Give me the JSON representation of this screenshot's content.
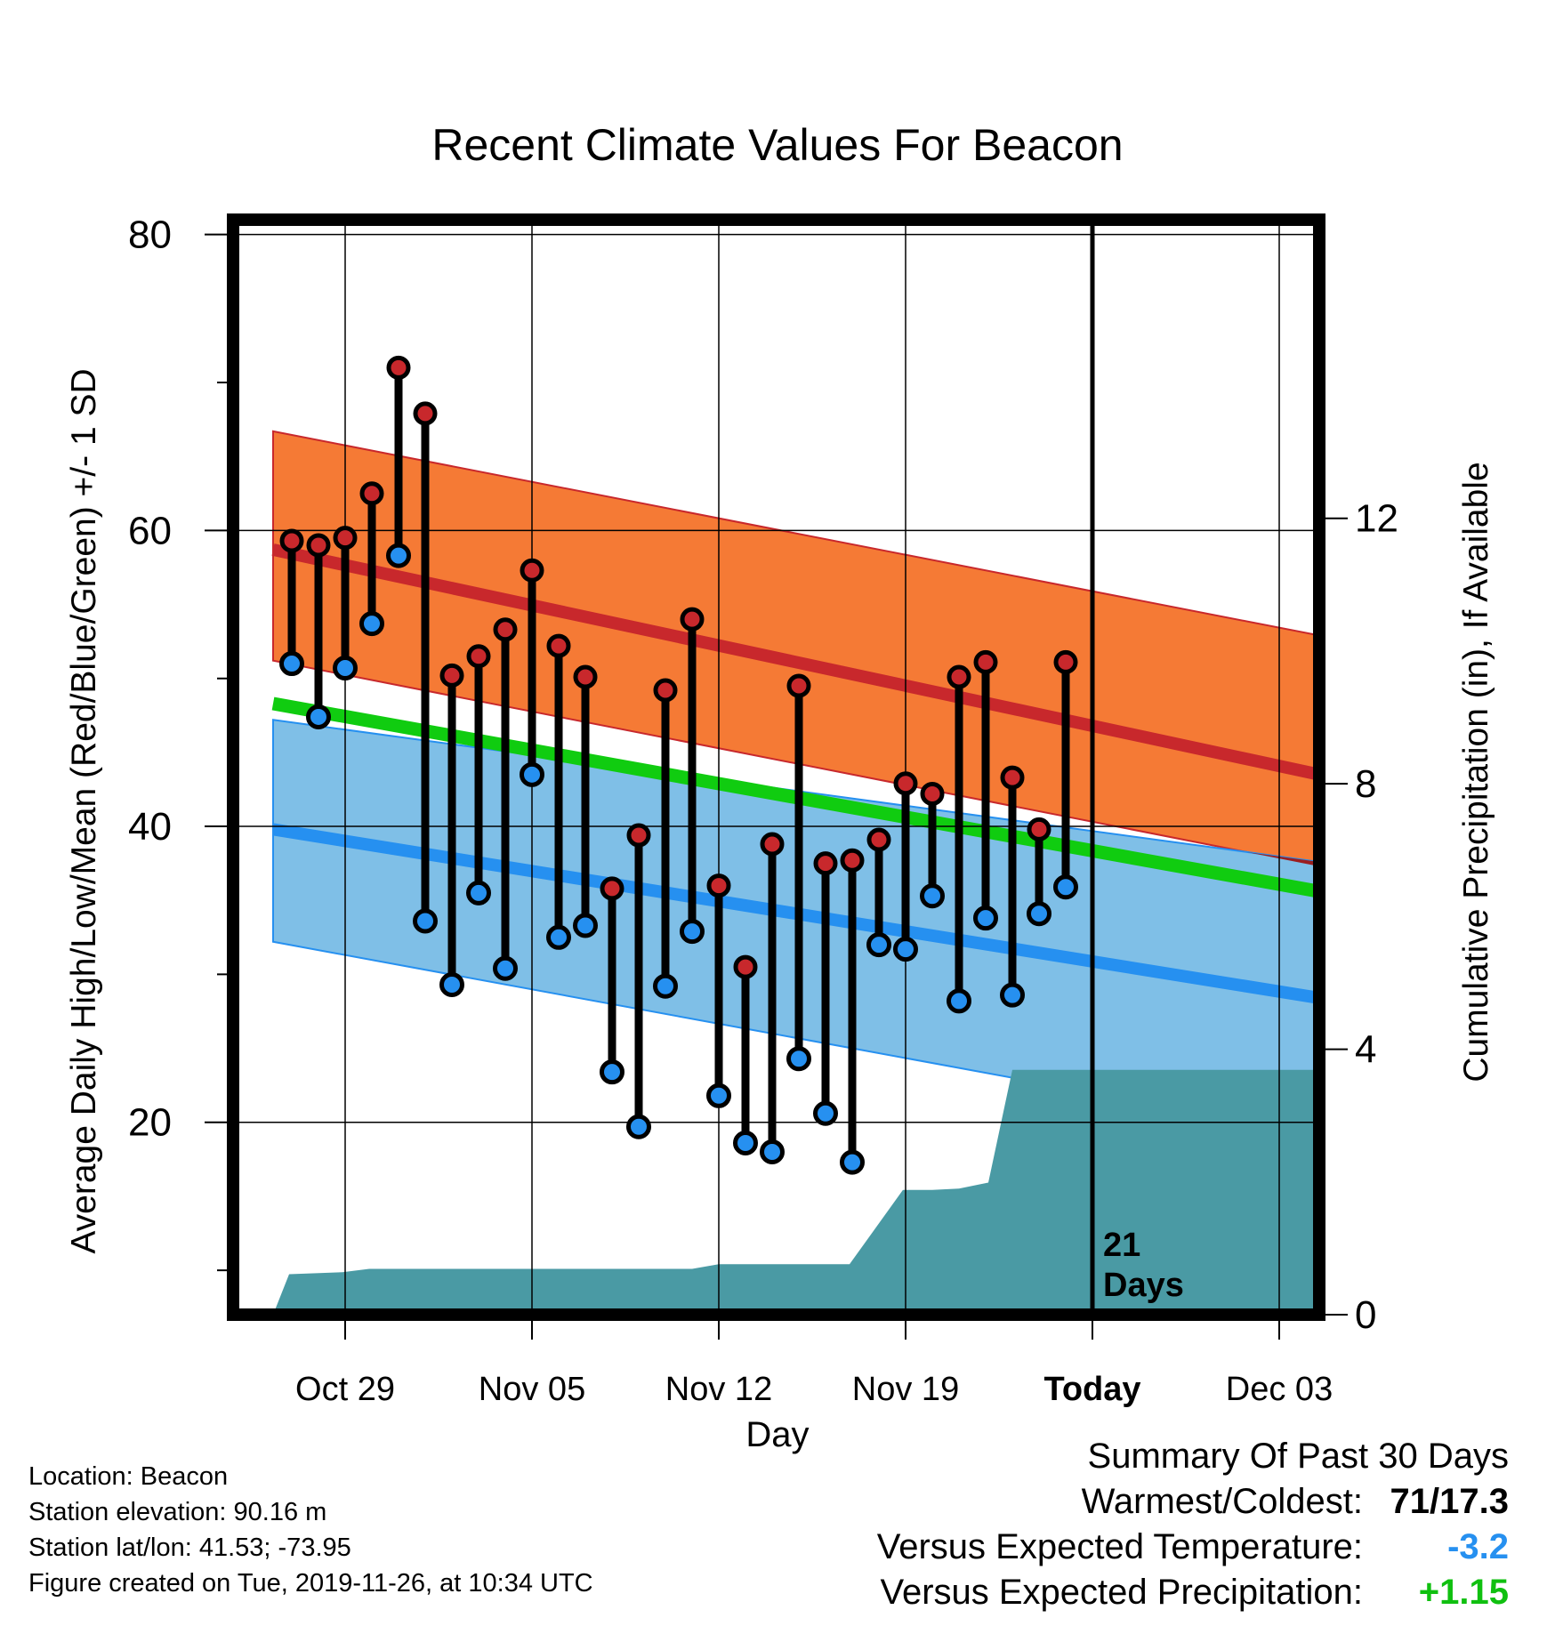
{
  "chart_data": {
    "type": "line",
    "title": "Recent Climate Values For Beacon",
    "xlabel": "Day",
    "ylabel_left": "Average Daily High/Low/Mean (Red/Blue/Green) +/- 1 SD",
    "ylabel_right": "Cumulative Precipitation (in), If Available",
    "x_domain_days": [
      -4.2,
      36.5
    ],
    "x_ticks": [
      {
        "label": "Oct 29",
        "day": 0
      },
      {
        "label": "Nov 05",
        "day": 7
      },
      {
        "label": "Nov 12",
        "day": 14
      },
      {
        "label": "Nov 19",
        "day": 21
      },
      {
        "label": "Today",
        "day": 28
      },
      {
        "label": "Dec 03",
        "day": 35
      }
    ],
    "ylim_left": [
      7,
      81
    ],
    "y_ticks_left": [
      20,
      40,
      60,
      80
    ],
    "ylim_right": [
      0,
      16.5
    ],
    "y_ticks_right": [
      0,
      4,
      8,
      12
    ],
    "today_day": 28,
    "today_annotation": [
      "21",
      "Days"
    ],
    "normals": {
      "start_day": -2.7,
      "end_day": 36.5,
      "high_sd_upper": [
        66.7,
        52.9
      ],
      "high_mean": [
        58.7,
        43.5
      ],
      "high_sd_lower": [
        51.2,
        37.3
      ],
      "mean": [
        48.3,
        35.6
      ],
      "low_sd_upper": [
        47.2,
        37.6
      ],
      "low_mean": [
        39.8,
        28.4
      ],
      "low_sd_lower": [
        32.2,
        19.2
      ]
    },
    "days": [
      -2,
      -1,
      0,
      1,
      2,
      3,
      4,
      5,
      6,
      7,
      8,
      9,
      10,
      11,
      12,
      13,
      14,
      15,
      16,
      17,
      18,
      19,
      20,
      21,
      22,
      23,
      24,
      25,
      26,
      27
    ],
    "highs": [
      59.3,
      59.0,
      59.5,
      62.5,
      71.0,
      67.9,
      50.2,
      51.5,
      53.3,
      57.3,
      52.2,
      50.1,
      35.8,
      39.4,
      49.2,
      54.0,
      36.0,
      30.5,
      38.8,
      49.5,
      37.5,
      37.7,
      39.1,
      42.9,
      42.2,
      50.1,
      51.1,
      43.3,
      39.8,
      51.1
    ],
    "lows": [
      51.0,
      47.4,
      50.7,
      53.7,
      58.3,
      33.6,
      29.3,
      35.5,
      30.4,
      43.5,
      32.5,
      33.3,
      23.4,
      19.7,
      29.2,
      32.9,
      21.8,
      18.6,
      18.0,
      24.3,
      20.6,
      17.3,
      32.0,
      31.7,
      35.3,
      28.2,
      33.8,
      28.6,
      34.1,
      35.9
    ],
    "precip_cumulative": [
      [
        -2.7,
        0
      ],
      [
        -2.1,
        0.61
      ],
      [
        -0.1,
        0.64
      ],
      [
        0.9,
        0.69
      ],
      [
        13.0,
        0.69
      ],
      [
        14.0,
        0.76
      ],
      [
        18.9,
        0.76
      ],
      [
        20.9,
        1.88
      ],
      [
        22.0,
        1.88
      ],
      [
        23.0,
        1.9
      ],
      [
        24.1,
        1.99
      ],
      [
        25.0,
        3.69
      ],
      [
        36.5,
        3.69
      ]
    ],
    "colors": {
      "high_band": "#F57A35",
      "high_line": "#C8282C",
      "low_band": "#7FBFE7",
      "low_line": "#2690F0",
      "mean_line": "#10CC10",
      "overlap": "#9B1E20",
      "precip": "#4A9AA4",
      "high_marker": "#C8282C",
      "low_marker": "#2690F0"
    }
  },
  "footer": {
    "location": "Location: Beacon",
    "elevation": "Station elevation: 90.16 m",
    "latlon": "Station lat/lon: 41.53; -73.95",
    "created": "Figure created on Tue, 2019-11-26, at 10:34 UTC"
  },
  "summary": {
    "title": "Summary Of Past 30 Days",
    "warmest_coldest_label": "Warmest/Coldest:",
    "warmest_coldest_value": "71/17.3",
    "temp_label": "Versus Expected Temperature:",
    "temp_value": "-3.2",
    "temp_color": "#2690F0",
    "precip_label": "Versus Expected Precipitation:",
    "precip_value": "+1.15",
    "precip_color": "#10C010"
  }
}
